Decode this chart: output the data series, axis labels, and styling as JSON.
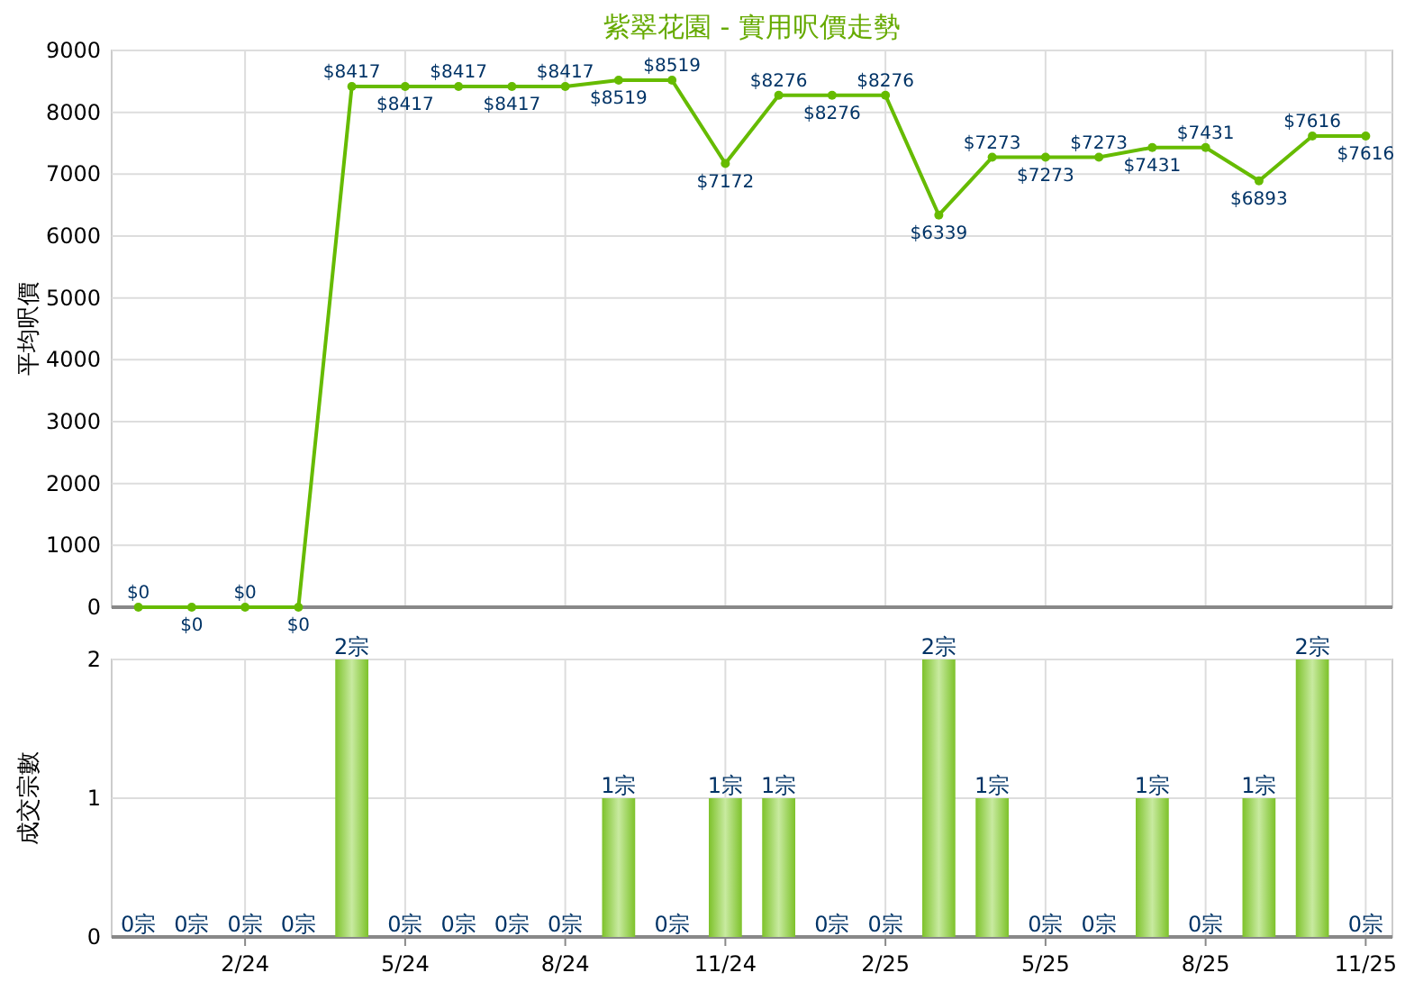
{
  "chart_data": [
    {
      "type": "line",
      "title": "紫翠花園 - 實用呎價走勢",
      "ylabel": "平均呎價",
      "categories": [
        null,
        null,
        null,
        null,
        null,
        null,
        null,
        null,
        null,
        null,
        null,
        null,
        null,
        null,
        null,
        null,
        null,
        null,
        null,
        null,
        null,
        null,
        null,
        null
      ],
      "tick_labels": "y",
      "ylim": [
        0,
        9000
      ],
      "yticks": [
        0,
        1000,
        2000,
        3000,
        4000,
        5000,
        6000,
        7000,
        8000,
        9000
      ],
      "grid": true,
      "marker": "circle",
      "series": [
        {
          "color": "#66bb00",
          "values": [
            0,
            0,
            0,
            0,
            8417,
            8417,
            8417,
            8417,
            8417,
            8519,
            8519,
            7172,
            8276,
            8276,
            8276,
            6339,
            7273,
            7273,
            7273,
            7431,
            7431,
            6893,
            7616,
            7616
          ],
          "value_labels": [
            "$0",
            "$0",
            "$0",
            "$0",
            "$8417",
            "$8417",
            "$8417",
            "$8417",
            "$8417",
            "$8519",
            "$8519",
            "$7172",
            "$8276",
            "$8276",
            "$8276",
            "$6339",
            "$7273",
            "$7273",
            "$7273",
            "$7431",
            "$7431",
            "$6893",
            "$7616",
            "$7616"
          ]
        }
      ]
    },
    {
      "type": "bar",
      "ylabel": "成交宗數",
      "categories": [
        null,
        null,
        "2/24",
        null,
        null,
        "5/24",
        null,
        null,
        "8/24",
        null,
        null,
        "11/24",
        null,
        null,
        "2/25",
        null,
        null,
        "5/25",
        null,
        null,
        "8/25",
        null,
        null,
        "11/25"
      ],
      "ylim": [
        0,
        2
      ],
      "yticks": [
        0,
        1,
        2
      ],
      "grid": true,
      "series": [
        {
          "color": "#7dc22a",
          "values": [
            0,
            0,
            0,
            0,
            2,
            0,
            0,
            0,
            0,
            1,
            0,
            1,
            1,
            0,
            0,
            2,
            1,
            0,
            0,
            1,
            0,
            1,
            2,
            0
          ],
          "value_labels": [
            "0宗",
            "0宗",
            "0宗",
            "0宗",
            "2宗",
            "0宗",
            "0宗",
            "0宗",
            "0宗",
            "1宗",
            "0宗",
            "1宗",
            "1宗",
            "0宗",
            "0宗",
            "2宗",
            "1宗",
            "0宗",
            "0宗",
            "1宗",
            "0宗",
            "1宗",
            "2宗",
            "0宗"
          ]
        }
      ]
    }
  ]
}
